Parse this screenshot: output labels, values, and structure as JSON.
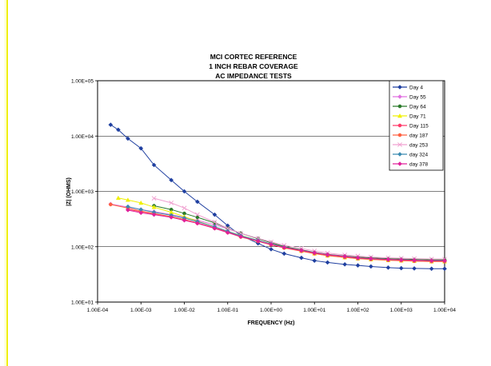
{
  "chart_data": {
    "type": "line",
    "title_lines": [
      "MCI CORTEC REFERENCE",
      "1 INCH REBAR COVERAGE",
      "AC IMPEDANCE TESTS"
    ],
    "xlabel": "FREQUENCY (Hz)",
    "ylabel": "|Z| (OHMS)",
    "x_scale": "log",
    "y_scale": "log",
    "xlim": [
      0.0001,
      10000
    ],
    "ylim": [
      10,
      100000
    ],
    "x_ticks": [
      "1.00E-04",
      "1.00E-03",
      "1.00E-02",
      "1.00E-01",
      "1.00E+00",
      "1.00E+01",
      "1.00E+02",
      "1.00E+03",
      "1.00E+04"
    ],
    "y_ticks": [
      "1.00E+01",
      "1.00E+02",
      "1.00E+03",
      "1.00E+04",
      "1.00E+05"
    ],
    "grid": "horizontal",
    "legend_position": "top-right",
    "series": [
      {
        "name": "Day 4",
        "color": "#1f3fa0",
        "marker": "diamond",
        "x": [
          0.0002,
          0.0003,
          0.0005,
          0.001,
          0.002,
          0.005,
          0.01,
          0.02,
          0.05,
          0.1,
          0.2,
          0.5,
          1,
          2,
          5,
          10,
          20,
          50,
          100,
          200,
          500,
          1000,
          2000,
          5000,
          10000
        ],
        "y": [
          16000,
          13000,
          9000,
          6000,
          3000,
          1600,
          1000,
          650,
          380,
          240,
          160,
          115,
          90,
          75,
          63,
          56,
          52,
          48,
          46,
          44,
          42,
          41,
          40.5,
          40,
          40
        ]
      },
      {
        "name": "Day 55",
        "color": "#e070e0",
        "marker": "diamond",
        "x": [
          0.0002,
          0.0005,
          0.001,
          0.002,
          0.005,
          0.01,
          0.02,
          0.05,
          0.1,
          0.2,
          0.5,
          1,
          2,
          5,
          10,
          20,
          50,
          100,
          200,
          500,
          1000,
          2000,
          5000,
          10000
        ],
        "y": [
          590,
          520,
          470,
          430,
          380,
          340,
          300,
          250,
          210,
          175,
          140,
          118,
          100,
          86,
          76,
          70,
          65,
          62,
          60,
          58,
          57,
          56,
          55,
          55
        ]
      },
      {
        "name": "Day 64",
        "color": "#2a7a2a",
        "marker": "circle",
        "x": [
          0.002,
          0.005,
          0.01,
          0.02,
          0.05,
          0.1,
          0.2,
          0.5,
          1,
          2,
          5,
          10,
          20,
          50,
          100,
          200,
          500,
          1000,
          2000,
          5000,
          10000
        ],
        "y": [
          550,
          470,
          400,
          340,
          270,
          215,
          175,
          140,
          118,
          101,
          88,
          79,
          73,
          68,
          65,
          63,
          61,
          60,
          59,
          58,
          58
        ]
      },
      {
        "name": "Day 71",
        "color": "#f0f000",
        "marker": "triangle",
        "x": [
          0.0003,
          0.0005,
          0.001,
          0.002,
          0.005,
          0.01,
          0.02,
          0.05,
          0.1,
          0.2,
          0.5,
          1,
          2,
          5,
          10,
          20,
          50,
          100,
          200,
          500,
          1000,
          2000,
          5000,
          10000
        ],
        "y": [
          760,
          700,
          620,
          520,
          420,
          350,
          290,
          230,
          190,
          160,
          130,
          112,
          97,
          84,
          75,
          69,
          64,
          61,
          59,
          57,
          56,
          55,
          54,
          54
        ]
      },
      {
        "name": "Day 115",
        "color": "#ff3a6a",
        "marker": "circle",
        "x": [
          0.0005,
          0.001,
          0.002,
          0.005,
          0.01,
          0.02,
          0.05,
          0.1,
          0.2,
          0.5,
          1,
          2,
          5,
          10,
          20,
          50,
          100,
          200,
          500,
          1000,
          2000,
          5000,
          10000
        ],
        "y": [
          470,
          430,
          390,
          350,
          310,
          270,
          220,
          185,
          155,
          128,
          110,
          96,
          84,
          76,
          70,
          65,
          62,
          60,
          58,
          57,
          56,
          55,
          55
        ]
      },
      {
        "name": "day 187",
        "color": "#ff6040",
        "marker": "circle",
        "x": [
          0.0002,
          0.0005,
          0.001,
          0.002,
          0.005,
          0.01,
          0.02,
          0.05,
          0.1,
          0.2,
          0.5,
          1,
          2,
          5,
          10,
          20,
          50,
          100,
          200,
          500,
          1000,
          2000,
          5000,
          10000
        ],
        "y": [
          580,
          500,
          440,
          400,
          350,
          310,
          265,
          215,
          180,
          150,
          125,
          108,
          95,
          83,
          75,
          69,
          64,
          61,
          59,
          57,
          56,
          55,
          54,
          54
        ]
      },
      {
        "name": "day 253",
        "color": "#f0a0d0",
        "marker": "x",
        "x": [
          0.002,
          0.005,
          0.01,
          0.02,
          0.05,
          0.1,
          0.2,
          0.5,
          1,
          2,
          5,
          10,
          20,
          50,
          100,
          200,
          500,
          1000,
          2000,
          5000,
          10000
        ],
        "y": [
          750,
          620,
          500,
          380,
          280,
          215,
          175,
          142,
          122,
          106,
          93,
          84,
          77,
          71,
          68,
          65,
          63,
          62,
          61,
          60,
          60
        ]
      },
      {
        "name": "day 324",
        "color": "#3a8ab0",
        "marker": "diamond",
        "x": [
          0.0005,
          0.001,
          0.002,
          0.005,
          0.01,
          0.02,
          0.05,
          0.1,
          0.2,
          0.5,
          1,
          2,
          5,
          10,
          20,
          50,
          100,
          200,
          500,
          1000,
          2000,
          5000,
          10000
        ],
        "y": [
          530,
          470,
          420,
          370,
          330,
          285,
          230,
          190,
          158,
          130,
          112,
          98,
          86,
          78,
          72,
          67,
          63,
          61,
          59,
          58,
          57,
          56,
          56
        ]
      },
      {
        "name": "day 378",
        "color": "#e0209a",
        "marker": "diamond",
        "x": [
          0.0005,
          0.001,
          0.002,
          0.005,
          0.01,
          0.02,
          0.05,
          0.1,
          0.2,
          0.5,
          1,
          2,
          5,
          10,
          20,
          50,
          100,
          200,
          500,
          1000,
          2000,
          5000,
          10000
        ],
        "y": [
          460,
          410,
          380,
          340,
          300,
          265,
          215,
          180,
          152,
          127,
          110,
          97,
          86,
          78,
          72,
          67,
          63,
          61,
          59,
          58,
          57,
          56,
          56
        ]
      }
    ]
  }
}
